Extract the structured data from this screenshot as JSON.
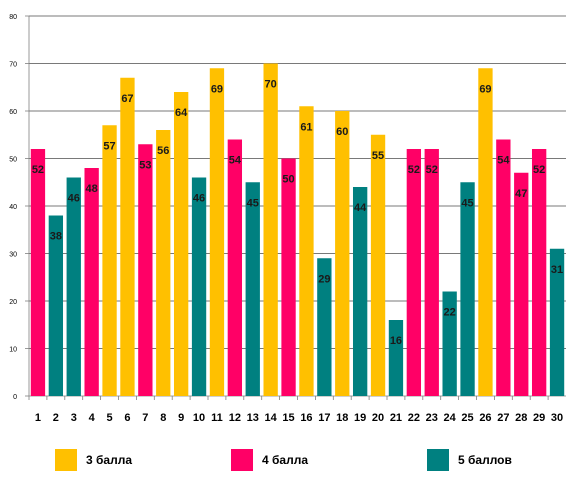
{
  "chart_data": {
    "type": "bar",
    "title": "",
    "xlabel": "",
    "ylabel": "",
    "ylim": [
      0,
      80
    ],
    "yticks": [
      0,
      10,
      20,
      30,
      40,
      50,
      60,
      70,
      80
    ],
    "grid": true,
    "legend_position": "bottom",
    "categories": [
      "1",
      "2",
      "3",
      "4",
      "5",
      "6",
      "7",
      "8",
      "9",
      "10",
      "11",
      "12",
      "13",
      "14",
      "15",
      "16",
      "17",
      "18",
      "19",
      "20",
      "21",
      "22",
      "23",
      "24",
      "25",
      "26",
      "27",
      "28",
      "29",
      "30"
    ],
    "values": [
      52,
      38,
      46,
      48,
      57,
      67,
      53,
      56,
      64,
      46,
      69,
      54,
      45,
      70,
      50,
      61,
      29,
      60,
      44,
      55,
      16,
      52,
      52,
      22,
      45,
      69,
      54,
      47,
      52,
      31
    ],
    "groups": [
      "4 балла",
      "5 баллов",
      "5 баллов",
      "4 балла",
      "3 балла",
      "3 балла",
      "4 балла",
      "3 балла",
      "3 балла",
      "5 баллов",
      "3 балла",
      "4 балла",
      "5 баллов",
      "3 балла",
      "4 балла",
      "3 балла",
      "5 баллов",
      "3 балла",
      "5 баллов",
      "3 балла",
      "5 баллов",
      "4 балла",
      "4 балла",
      "5 баллов",
      "5 баллов",
      "3 балла",
      "4 балла",
      "4 балла",
      "4 балла",
      "5 баллов"
    ],
    "legend": [
      {
        "name": "3 балла",
        "color": "#FFC000"
      },
      {
        "name": "4 балла",
        "color": "#FF0066"
      },
      {
        "name": "5 баллов",
        "color": "#008080"
      }
    ]
  }
}
